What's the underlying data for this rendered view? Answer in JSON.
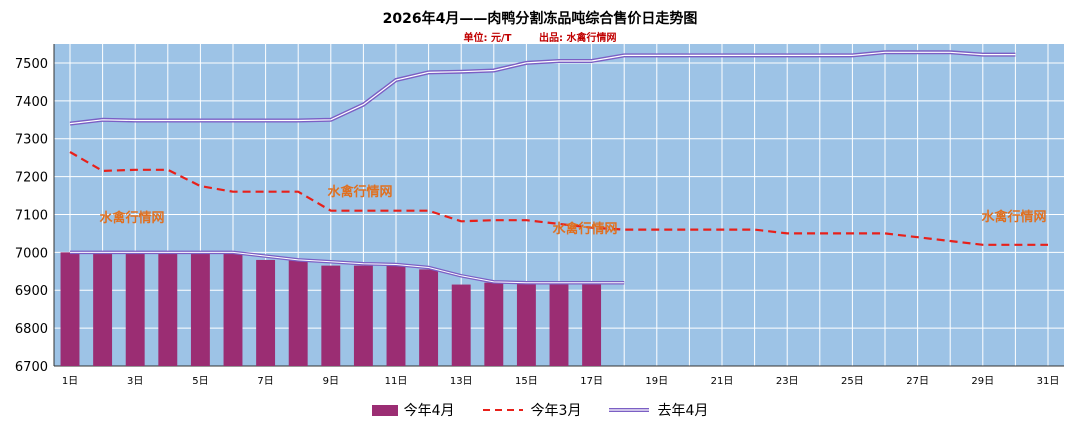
{
  "chart_data": {
    "type": "bar+line",
    "title": "2026年4月——肉鸭分割冻品吨综合售价日走势图",
    "subtitle_unit": "单位: 元/T",
    "subtitle_source": "出品: 水禽行情网",
    "watermark": "水禽行情网",
    "ylim": [
      6700,
      7550
    ],
    "yticks": [
      6700,
      6800,
      6900,
      7000,
      7100,
      7200,
      7300,
      7400,
      7500
    ],
    "xlim": [
      1,
      31
    ],
    "xtick_labels": [
      "1日",
      "3日",
      "5日",
      "7日",
      "9日",
      "11日",
      "13日",
      "15日",
      "17日",
      "19日",
      "21日",
      "23日",
      "25日",
      "27日",
      "29日",
      "31日"
    ],
    "grid": true,
    "legend_position": "bottom",
    "colors": {
      "plot_bg": "#9dc3e6",
      "grid": "#ffffff",
      "bar": "#9b2d73",
      "march_line": "#e8201a",
      "last_year_line": "#7b5fc4",
      "watermark": "#e07020"
    },
    "series": [
      {
        "name": "今年4月",
        "kind": "bar",
        "x": [
          1,
          2,
          3,
          4,
          5,
          6,
          7,
          8,
          9,
          10,
          11,
          12,
          13,
          14,
          15,
          16,
          17
        ],
        "values": [
          7000,
          7000,
          7000,
          7000,
          7000,
          7000,
          6980,
          6980,
          6965,
          6965,
          6965,
          6955,
          6915,
          6920,
          6920,
          6920,
          6920
        ]
      },
      {
        "name": "今年3月",
        "kind": "dashed-line",
        "x": [
          1,
          2,
          3,
          4,
          5,
          6,
          7,
          8,
          9,
          10,
          11,
          12,
          13,
          14,
          15,
          16,
          17,
          18,
          19,
          20,
          21,
          22,
          23,
          24,
          25,
          26,
          27,
          28,
          29,
          30,
          31
        ],
        "values": [
          7265,
          7215,
          7218,
          7218,
          7175,
          7160,
          7160,
          7160,
          7110,
          7110,
          7110,
          7110,
          7082,
          7085,
          7085,
          7075,
          7065,
          7060,
          7060,
          7060,
          7060,
          7060,
          7050,
          7050,
          7050,
          7050,
          7040,
          7030,
          7020,
          7020,
          7020
        ]
      },
      {
        "name": "去年4月",
        "kind": "double-line",
        "x": [
          1,
          2,
          3,
          4,
          5,
          6,
          7,
          8,
          9,
          10,
          11,
          12,
          13,
          14,
          15,
          16,
          17,
          18,
          19,
          20,
          21,
          22,
          23,
          24,
          25,
          26,
          27,
          28,
          29,
          30
        ],
        "values": [
          7340,
          7350,
          7348,
          7348,
          7348,
          7348,
          7348,
          7348,
          7350,
          7390,
          7455,
          7475,
          7477,
          7480,
          7500,
          7505,
          7505,
          7520,
          7520,
          7520,
          7520,
          7520,
          7520,
          7520,
          7520,
          7528,
          7528,
          7528,
          7522,
          7522
        ]
      },
      {
        "name": "去年4月-tail",
        "kind": "tail-line",
        "x": [
          1,
          2,
          3,
          4,
          5,
          6,
          7,
          8,
          9,
          10,
          11,
          12,
          13,
          14,
          15,
          16,
          17,
          18
        ],
        "values": [
          7000,
          7000,
          7000,
          7000,
          7000,
          7000,
          6990,
          6980,
          6975,
          6970,
          6968,
          6960,
          6938,
          6922,
          6920,
          6920,
          6920,
          6920
        ]
      }
    ]
  }
}
